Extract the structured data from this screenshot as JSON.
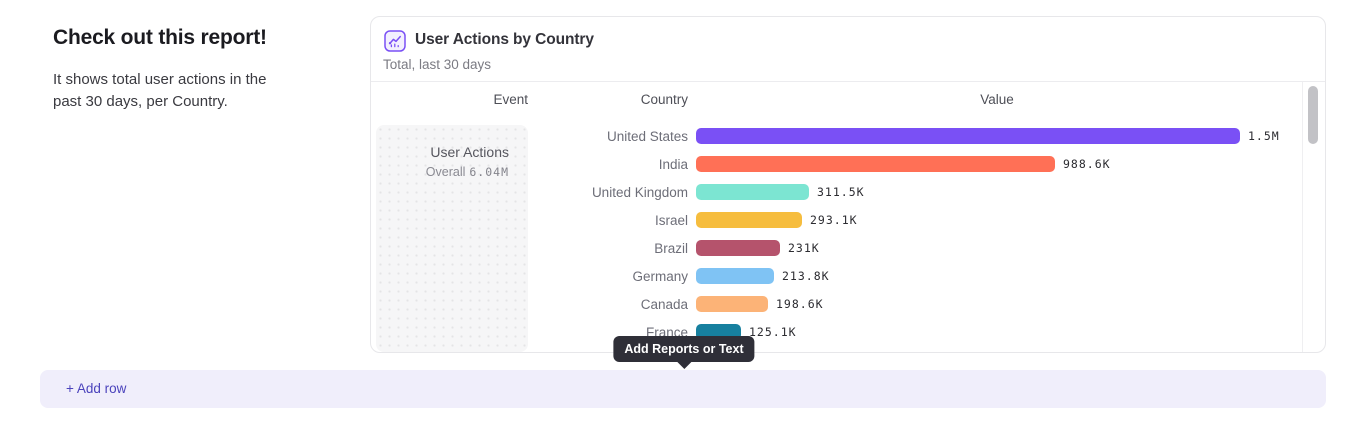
{
  "intro": {
    "title": "Check out this report!",
    "description": "It shows total user actions in the past 30 days, per Country."
  },
  "card": {
    "icon": "line-chart-icon",
    "title": "User Actions by Country",
    "subtitle": "Total, last 30 days",
    "columns": {
      "event": "Event",
      "country": "Country",
      "value": "Value"
    },
    "event_cell": {
      "name": "User Actions",
      "overall_label": "Overall",
      "overall_value": "6.04M"
    },
    "accent_color": "#7a50f5"
  },
  "chart_data": {
    "type": "bar",
    "orientation": "horizontal",
    "title": "User Actions by Country",
    "xlabel": "Value",
    "ylabel": "Country",
    "categories": [
      "United States",
      "India",
      "United Kingdom",
      "Israel",
      "Brazil",
      "Germany",
      "Canada",
      "France"
    ],
    "values": [
      1500000,
      988600,
      311500,
      293100,
      231000,
      213800,
      198600,
      125100
    ],
    "labels": [
      "1.5M",
      "988.6K",
      "311.5K",
      "293.1K",
      "231K",
      "213.8K",
      "198.6K",
      "125.1K"
    ],
    "colors": [
      "#7a50f5",
      "#ff7056",
      "#7ce5d2",
      "#f6bd3e",
      "#b5536c",
      "#7fc3f4",
      "#fcb377",
      "#17809f"
    ],
    "axis_max": 1500000,
    "grid": false,
    "legend": false
  },
  "tooltip": {
    "text": "Add Reports or Text"
  },
  "add_row": {
    "label": "+ Add row"
  }
}
